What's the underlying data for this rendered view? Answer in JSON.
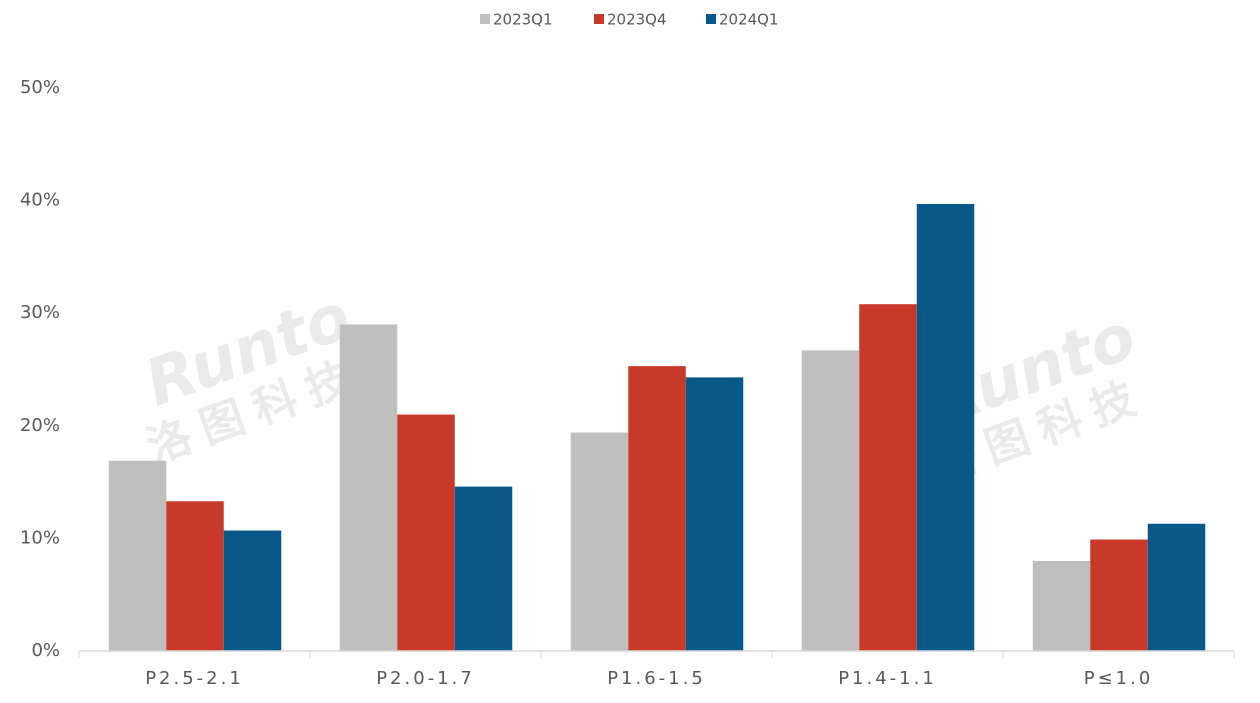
{
  "chart_data": {
    "type": "bar",
    "categories": [
      "P2.5-2.1",
      "P2.0-1.7",
      "P1.6-1.5",
      "P1.4-1.1",
      "P≤1.0"
    ],
    "series": [
      {
        "name": "2023Q1",
        "color": "#bfbfbf",
        "values": [
          16.9,
          29.0,
          19.4,
          26.7,
          8.0
        ]
      },
      {
        "name": "2023Q4",
        "color": "#c9392a",
        "values": [
          13.3,
          21.0,
          25.3,
          30.8,
          9.9
        ]
      },
      {
        "name": "2024Q1",
        "color": "#08588a",
        "values": [
          10.7,
          14.6,
          24.3,
          39.7,
          11.3
        ]
      }
    ],
    "ylim": [
      0,
      50
    ],
    "yticks": [
      {
        "value": 0,
        "label": "0%"
      },
      {
        "value": 10,
        "label": "10%"
      },
      {
        "value": 20,
        "label": "20%"
      },
      {
        "value": 30,
        "label": "30%"
      },
      {
        "value": 40,
        "label": "40%"
      },
      {
        "value": 50,
        "label": "50%"
      }
    ],
    "grid": false,
    "legend": "top",
    "watermark": [
      "Runto",
      "洛图科技"
    ]
  }
}
